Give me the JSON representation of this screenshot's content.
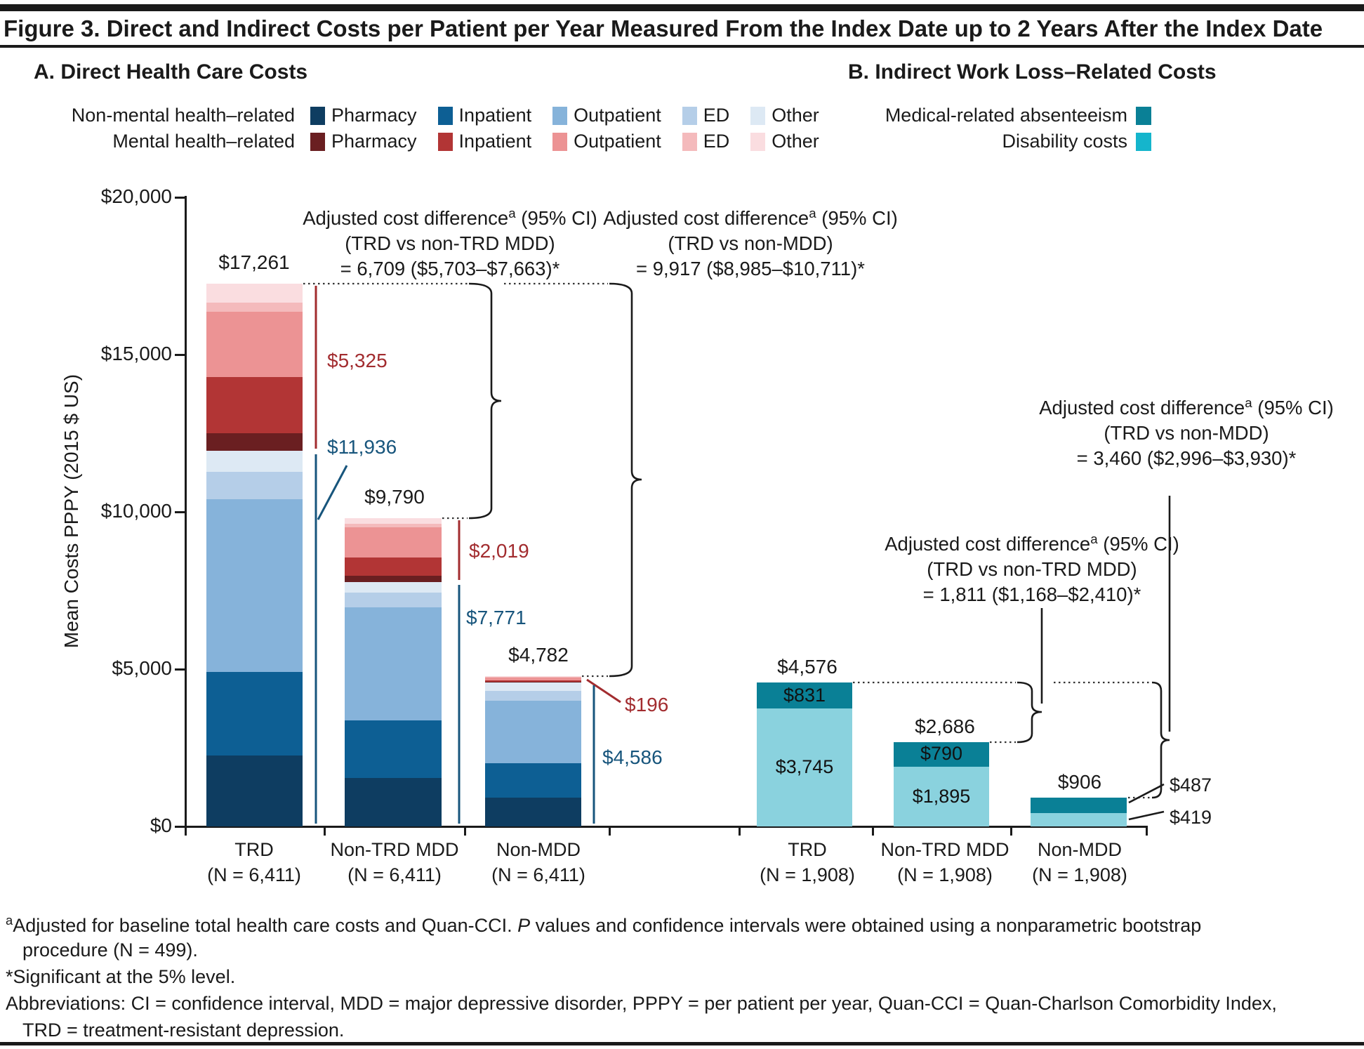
{
  "header": {
    "title": "Figure 3. Direct and Indirect Costs per Patient per Year Measured From the Index Date up to 2 Years After the Index Date"
  },
  "panelA": {
    "heading": "A. Direct Health Care Costs",
    "legend_rows": [
      {
        "group": "Non-mental health–related",
        "items": [
          {
            "label": "Pharmacy",
            "color": "#0e3d61"
          },
          {
            "label": "Inpatient",
            "color": "#0d5f94"
          },
          {
            "label": "Outpatient",
            "color": "#86b3da"
          },
          {
            "label": "ED",
            "color": "#b5cee8"
          },
          {
            "label": "Other",
            "color": "#dde9f4"
          }
        ]
      },
      {
        "group": "Mental health–related",
        "items": [
          {
            "label": "Pharmacy",
            "color": "#6a1f21"
          },
          {
            "label": "Inpatient",
            "color": "#b23535"
          },
          {
            "label": "Outpatient",
            "color": "#ec9394"
          },
          {
            "label": "ED",
            "color": "#f4babc"
          },
          {
            "label": "Other",
            "color": "#fadde0"
          }
        ]
      }
    ]
  },
  "panelB": {
    "heading": "B. Indirect Work Loss–Related Costs",
    "legend": [
      {
        "label": "Medical-related absenteeism",
        "color": "#0a8096"
      },
      {
        "label": "Disability costs",
        "color": "#15b5cc"
      }
    ]
  },
  "y_axis": {
    "label": "Mean Costs PPPY (2015 $ US)",
    "tick_labels": [
      "$0",
      "$5,000",
      "$10,000",
      "$15,000",
      "$20,000"
    ],
    "tick_values": [
      0,
      5000,
      10000,
      15000,
      20000
    ]
  },
  "annotations": {
    "a1": {
      "pre": "Adjusted cost difference",
      "sup": "a",
      "post": " (95% CI)",
      "line2": "(TRD vs non-TRD MDD)",
      "line3": "= 6,709 ($5,703–$7,663)*"
    },
    "a2": {
      "pre": "Adjusted cost difference",
      "sup": "a",
      "post": " (95% CI)",
      "line2": "(TRD vs non-MDD)",
      "line3": "= 9,917 ($8,985–$10,711)*"
    },
    "b1": {
      "pre": "Adjusted cost difference",
      "sup": "a",
      "post": " (95% CI)",
      "line2": "(TRD vs non-MDD)",
      "line3": "= 3,460 ($2,996–$3,930)*"
    },
    "b2": {
      "pre": "Adjusted cost difference",
      "sup": "a",
      "post": " (95% CI)",
      "line2": "(TRD vs non-TRD MDD)",
      "line3": "= 1,811 ($1,168–$2,410)*"
    }
  },
  "labels": {
    "a_totals": [
      "$17,261",
      "$9,790",
      "$4,782"
    ],
    "a_mental": [
      "$5,325",
      "$2,019",
      "$196"
    ],
    "a_non_mental": [
      "$11,936",
      "$7,771",
      "$4,586"
    ],
    "b_totals": [
      "$4,576",
      "$2,686",
      "$906"
    ],
    "b_outside": {
      "absenteeism": "$487",
      "disability": "$419"
    },
    "colors": {
      "mental_label": "#a22c2f",
      "non_mental_label": "#17557c"
    }
  },
  "chart_data": [
    {
      "type": "bar",
      "stacked": true,
      "panel": "A",
      "title": "A. Direct Health Care Costs",
      "xlabel": "",
      "ylabel": "Mean Costs PPPY (2015 $ US)",
      "ylim": [
        0,
        20000
      ],
      "grid": false,
      "categories": [
        {
          "name": "TRD",
          "n": "(N = 6,411)"
        },
        {
          "name": "Non-TRD MDD",
          "n": "(N = 6,411)"
        },
        {
          "name": "Non-MDD",
          "n": "(N = 6,411)"
        }
      ],
      "series": [
        {
          "group": "Non-mental health–related",
          "label": "Pharmacy",
          "color": "#0e3d61",
          "values": [
            2250,
            1540,
            911
          ]
        },
        {
          "group": "Non-mental health–related",
          "label": "Inpatient",
          "color": "#0d5f94",
          "values": [
            2650,
            1841,
            1105
          ]
        },
        {
          "group": "Non-mental health–related",
          "label": "Outpatient",
          "color": "#86b3da",
          "values": [
            5500,
            3575,
            1990
          ]
        },
        {
          "group": "Non-mental health–related",
          "label": "ED",
          "color": "#b5cee8",
          "values": [
            870,
            485,
            310
          ]
        },
        {
          "group": "Non-mental health–related",
          "label": "Other",
          "color": "#dde9f4",
          "values": [
            666,
            330,
            270
          ]
        },
        {
          "group": "Mental health–related",
          "label": "Pharmacy",
          "color": "#6a1f21",
          "values": [
            570,
            189,
            10
          ]
        },
        {
          "group": "Mental health–related",
          "label": "Inpatient",
          "color": "#b23535",
          "values": [
            1780,
            590,
            36
          ]
        },
        {
          "group": "Mental health–related",
          "label": "Outpatient",
          "color": "#ec9394",
          "values": [
            2070,
            960,
            100
          ]
        },
        {
          "group": "Mental health–related",
          "label": "ED",
          "color": "#f4babc",
          "values": [
            295,
            100,
            20
          ]
        },
        {
          "group": "Mental health–related",
          "label": "Other",
          "color": "#fadde0",
          "values": [
            610,
            180,
            30
          ]
        }
      ],
      "bar_totals": [
        17261,
        9790,
        4782
      ],
      "mental_subtotals": [
        5325,
        2019,
        196
      ],
      "non_mental_subtotals": [
        11936,
        7771,
        4586
      ]
    },
    {
      "type": "bar",
      "stacked": true,
      "panel": "B",
      "title": "B. Indirect Work Loss–Related Costs",
      "xlabel": "",
      "ylabel": "Mean Costs PPPY (2015 $ US)",
      "ylim": [
        0,
        20000
      ],
      "grid": false,
      "categories": [
        {
          "name": "TRD",
          "n": "(N = 1,908)"
        },
        {
          "name": "Non-TRD MDD",
          "n": "(N = 1,908)"
        },
        {
          "name": "Non-MDD",
          "n": "(N = 1,908)"
        }
      ],
      "series": [
        {
          "label": "Disability costs",
          "color": "#15b5cc",
          "bar_color": "#8ad2de",
          "values": [
            3745,
            1895,
            419
          ]
        },
        {
          "label": "Medical-related absenteeism",
          "color": "#0a8096",
          "values": [
            831,
            790,
            487
          ]
        }
      ],
      "segment_labels": [
        [
          "$3,745",
          "$831"
        ],
        [
          "$1,895",
          "$790"
        ],
        [
          "",
          ""
        ]
      ],
      "bar_totals": [
        4576,
        2686,
        906
      ]
    }
  ],
  "footnotes": {
    "f1": {
      "sup": "a",
      "t1": "Adjusted for baseline total health care costs and Quan-CCI. ",
      "italic": "P",
      "t2": " values and confidence intervals were obtained using a nonparametric bootstrap",
      "line2": "procedure (N = 499)."
    },
    "f2": "*Significant at the 5% level.",
    "f3": {
      "line1": "Abbreviations: CI = confidence interval, MDD = major depressive disorder, PPPY = per patient per year, Quan-CCI = Quan-Charlson Comorbidity Index,",
      "line2": "TRD = treatment-resistant depression."
    }
  }
}
